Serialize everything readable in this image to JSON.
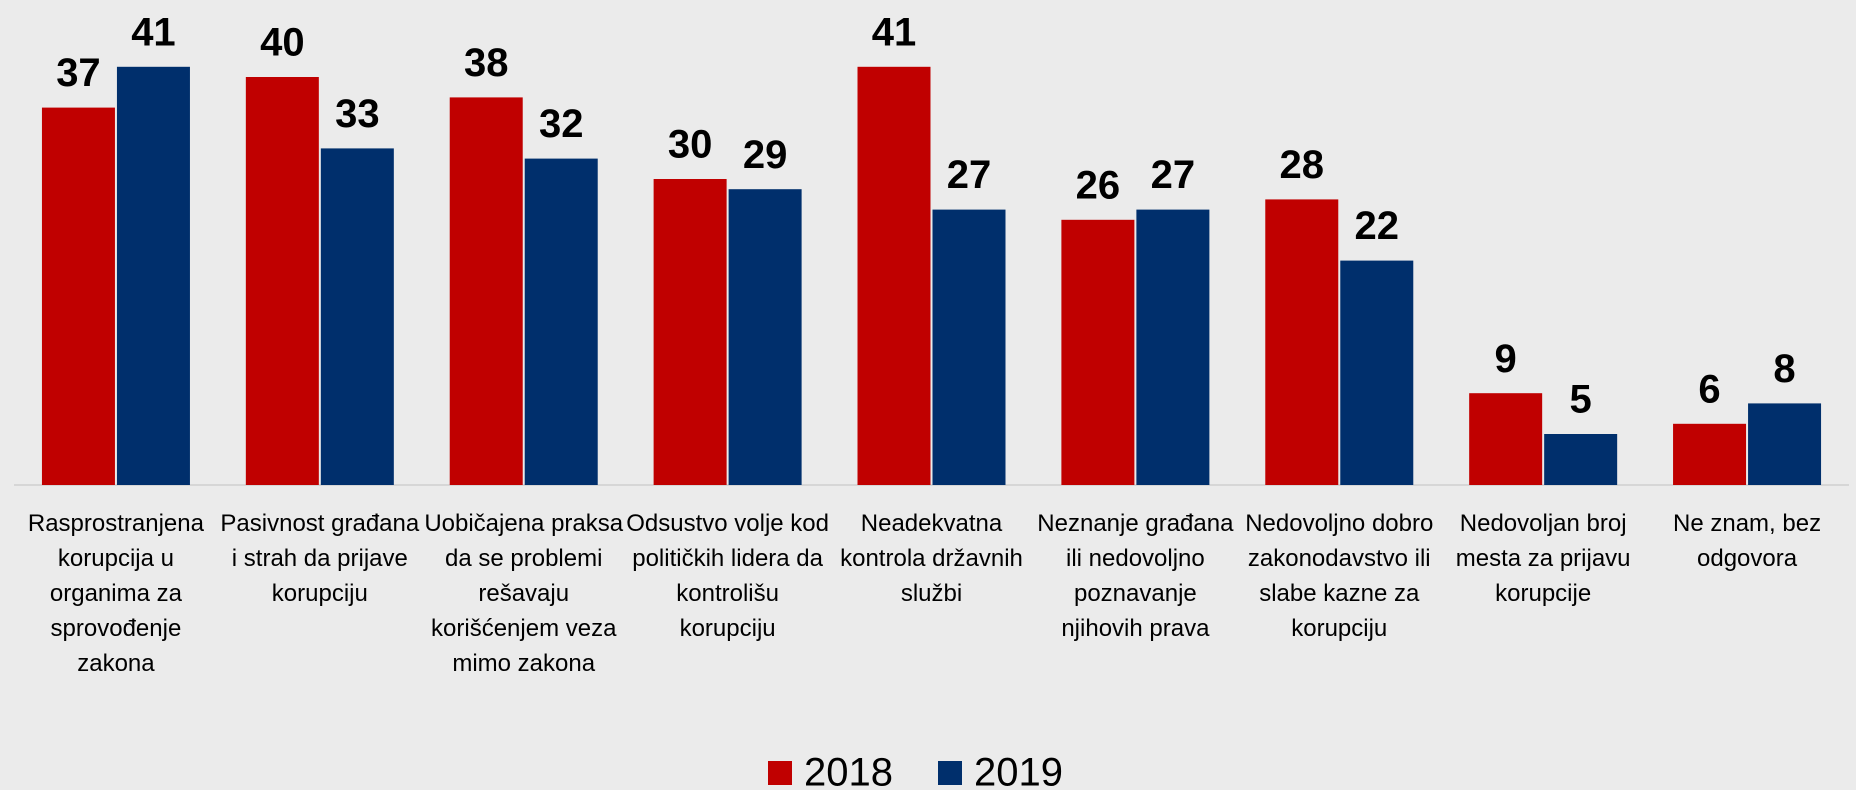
{
  "chart_data": {
    "type": "bar",
    "categories": [
      "Rasprostranjena korupcija u organima za sprovođenje zakona",
      "Pasivnost građana i strah da prijave korupciju",
      "Uobičajena praksa da se problemi rešavaju korišćenjem veza mimo zakona",
      "Odsustvo volje kod političkih lidera da kontrolišu korupciju",
      "Neadekvatna kontrola državnih službi",
      "Neznanje građana ili nedovoljno poznavanje njihovih prava",
      "Nedovoljno dobro zakonodavstvo ili slabe kazne za korupciju",
      "Nedovoljan broj mesta za prijavu korupcije",
      "Ne znam, bez odgovora"
    ],
    "series": [
      {
        "name": "2018",
        "color": "#c00000",
        "values": [
          37,
          40,
          38,
          30,
          41,
          26,
          28,
          9,
          6
        ]
      },
      {
        "name": "2019",
        "color": "#002f6c",
        "values": [
          41,
          33,
          32,
          29,
          27,
          27,
          22,
          5,
          8
        ]
      }
    ],
    "ylim": [
      0,
      45
    ],
    "legend": "bottom"
  }
}
